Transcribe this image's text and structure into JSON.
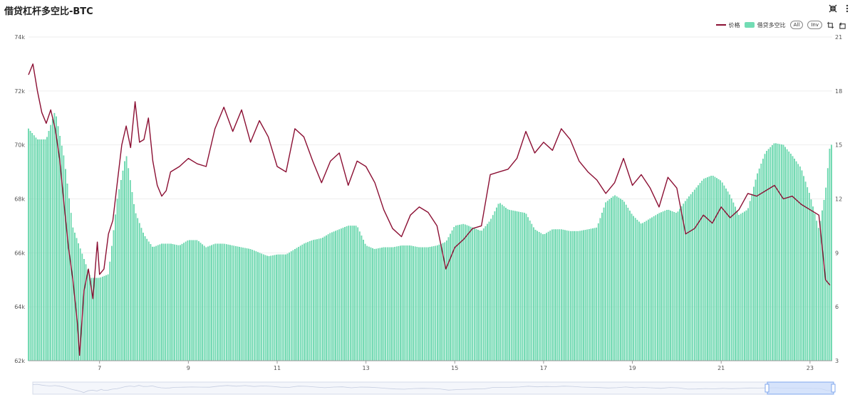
{
  "title": "借贷杠杆多空比-BTC",
  "toolbar": {
    "icons": [
      "collapse-icon",
      "more-icon"
    ]
  },
  "legend": {
    "price_label": "价格",
    "ratio_label": "借贷多空比",
    "all_label": "All",
    "inv_label": "Inv",
    "icons": [
      "zoom-select-icon",
      "zoom-reset-icon"
    ]
  },
  "colors": {
    "price": "#8b0f33",
    "ratio": "#72dcb4",
    "ratio_border": "#45c896",
    "grid": "#eeeeee"
  },
  "chart_data": {
    "type": "bar+line",
    "title": "借贷杠杆多空比-BTC",
    "x_tick_labels": [
      "7",
      "9",
      "11",
      "13",
      "15",
      "17",
      "19",
      "21",
      "23"
    ],
    "x_domain": [
      5.4,
      23.5
    ],
    "y_left": {
      "ylim": [
        62000,
        74000
      ],
      "ticks": [
        "62k",
        "64k",
        "66k",
        "68k",
        "70k",
        "72k",
        "74k"
      ]
    },
    "y_right": {
      "ylim": [
        3,
        21
      ],
      "ticks": [
        "3",
        "6",
        "9",
        "12",
        "15",
        "18",
        "21"
      ]
    },
    "series": [
      {
        "name": "价格",
        "kind": "line",
        "axis": "left",
        "points": [
          [
            5.4,
            72600
          ],
          [
            5.5,
            73000
          ],
          [
            5.6,
            72000
          ],
          [
            5.7,
            71200
          ],
          [
            5.8,
            70800
          ],
          [
            5.9,
            71300
          ],
          [
            6.0,
            70600
          ],
          [
            6.1,
            69500
          ],
          [
            6.2,
            67800
          ],
          [
            6.3,
            66200
          ],
          [
            6.4,
            65000
          ],
          [
            6.5,
            63400
          ],
          [
            6.55,
            62200
          ],
          [
            6.65,
            64600
          ],
          [
            6.75,
            65400
          ],
          [
            6.85,
            64300
          ],
          [
            6.95,
            66400
          ],
          [
            7.0,
            65200
          ],
          [
            7.1,
            65400
          ],
          [
            7.2,
            66700
          ],
          [
            7.3,
            67200
          ],
          [
            7.4,
            68600
          ],
          [
            7.5,
            70000
          ],
          [
            7.6,
            70700
          ],
          [
            7.7,
            69900
          ],
          [
            7.8,
            71600
          ],
          [
            7.9,
            70100
          ],
          [
            8.0,
            70200
          ],
          [
            8.1,
            71000
          ],
          [
            8.2,
            69400
          ],
          [
            8.3,
            68500
          ],
          [
            8.4,
            68100
          ],
          [
            8.5,
            68300
          ],
          [
            8.6,
            69000
          ],
          [
            8.8,
            69200
          ],
          [
            9.0,
            69500
          ],
          [
            9.2,
            69300
          ],
          [
            9.4,
            69200
          ],
          [
            9.6,
            70600
          ],
          [
            9.8,
            71400
          ],
          [
            10.0,
            70500
          ],
          [
            10.2,
            71300
          ],
          [
            10.4,
            70100
          ],
          [
            10.6,
            70900
          ],
          [
            10.8,
            70300
          ],
          [
            11.0,
            69200
          ],
          [
            11.2,
            69000
          ],
          [
            11.4,
            70600
          ],
          [
            11.6,
            70300
          ],
          [
            11.8,
            69400
          ],
          [
            12.0,
            68600
          ],
          [
            12.2,
            69400
          ],
          [
            12.4,
            69700
          ],
          [
            12.6,
            68500
          ],
          [
            12.8,
            69400
          ],
          [
            13.0,
            69200
          ],
          [
            13.2,
            68600
          ],
          [
            13.4,
            67600
          ],
          [
            13.6,
            66900
          ],
          [
            13.8,
            66600
          ],
          [
            14.0,
            67400
          ],
          [
            14.2,
            67700
          ],
          [
            14.4,
            67500
          ],
          [
            14.6,
            67000
          ],
          [
            14.8,
            65400
          ],
          [
            15.0,
            66200
          ],
          [
            15.2,
            66500
          ],
          [
            15.4,
            66900
          ],
          [
            15.6,
            67000
          ],
          [
            15.8,
            68900
          ],
          [
            16.0,
            69000
          ],
          [
            16.2,
            69100
          ],
          [
            16.4,
            69500
          ],
          [
            16.6,
            70500
          ],
          [
            16.8,
            69700
          ],
          [
            17.0,
            70100
          ],
          [
            17.2,
            69800
          ],
          [
            17.4,
            70600
          ],
          [
            17.6,
            70200
          ],
          [
            17.8,
            69400
          ],
          [
            18.0,
            69000
          ],
          [
            18.2,
            68700
          ],
          [
            18.4,
            68200
          ],
          [
            18.6,
            68600
          ],
          [
            18.8,
            69500
          ],
          [
            19.0,
            68500
          ],
          [
            19.2,
            68900
          ],
          [
            19.4,
            68400
          ],
          [
            19.6,
            67700
          ],
          [
            19.8,
            68800
          ],
          [
            20.0,
            68400
          ],
          [
            20.2,
            66700
          ],
          [
            20.4,
            66900
          ],
          [
            20.6,
            67400
          ],
          [
            20.8,
            67100
          ],
          [
            21.0,
            67700
          ],
          [
            21.2,
            67300
          ],
          [
            21.4,
            67600
          ],
          [
            21.6,
            68200
          ],
          [
            21.8,
            68100
          ],
          [
            22.0,
            68300
          ],
          [
            22.2,
            68500
          ],
          [
            22.4,
            68000
          ],
          [
            22.6,
            68100
          ],
          [
            22.8,
            67800
          ],
          [
            23.0,
            67600
          ],
          [
            23.2,
            67400
          ],
          [
            23.35,
            65000
          ],
          [
            23.45,
            64800
          ]
        ]
      },
      {
        "name": "借贷多空比",
        "kind": "bar",
        "axis": "right",
        "points": [
          [
            5.4,
            15.9
          ],
          [
            5.6,
            15.3
          ],
          [
            5.8,
            15.3
          ],
          [
            6.0,
            16.9
          ],
          [
            6.2,
            14.3
          ],
          [
            6.4,
            10.4
          ],
          [
            6.6,
            9.0
          ],
          [
            6.8,
            7.6
          ],
          [
            7.0,
            7.6
          ],
          [
            7.2,
            7.8
          ],
          [
            7.4,
            12.0
          ],
          [
            7.6,
            14.5
          ],
          [
            7.8,
            11.3
          ],
          [
            8.0,
            10.0
          ],
          [
            8.2,
            9.3
          ],
          [
            8.4,
            9.5
          ],
          [
            8.6,
            9.5
          ],
          [
            8.8,
            9.4
          ],
          [
            9.0,
            9.7
          ],
          [
            9.2,
            9.7
          ],
          [
            9.4,
            9.3
          ],
          [
            9.6,
            9.5
          ],
          [
            9.8,
            9.5
          ],
          [
            10.0,
            9.4
          ],
          [
            10.2,
            9.3
          ],
          [
            10.4,
            9.2
          ],
          [
            10.6,
            9.0
          ],
          [
            10.8,
            8.8
          ],
          [
            11.0,
            8.9
          ],
          [
            11.2,
            8.9
          ],
          [
            11.4,
            9.2
          ],
          [
            11.6,
            9.5
          ],
          [
            11.8,
            9.7
          ],
          [
            12.0,
            9.8
          ],
          [
            12.2,
            10.1
          ],
          [
            12.4,
            10.3
          ],
          [
            12.6,
            10.5
          ],
          [
            12.8,
            10.5
          ],
          [
            13.0,
            9.4
          ],
          [
            13.2,
            9.2
          ],
          [
            13.4,
            9.3
          ],
          [
            13.6,
            9.3
          ],
          [
            13.8,
            9.4
          ],
          [
            14.0,
            9.4
          ],
          [
            14.2,
            9.3
          ],
          [
            14.4,
            9.3
          ],
          [
            14.6,
            9.4
          ],
          [
            14.8,
            9.6
          ],
          [
            15.0,
            10.5
          ],
          [
            15.2,
            10.6
          ],
          [
            15.4,
            10.4
          ],
          [
            15.6,
            10.2
          ],
          [
            15.8,
            10.8
          ],
          [
            16.0,
            11.8
          ],
          [
            16.2,
            11.4
          ],
          [
            16.4,
            11.3
          ],
          [
            16.6,
            11.2
          ],
          [
            16.8,
            10.3
          ],
          [
            17.0,
            10.0
          ],
          [
            17.2,
            10.3
          ],
          [
            17.4,
            10.3
          ],
          [
            17.6,
            10.2
          ],
          [
            17.8,
            10.2
          ],
          [
            18.0,
            10.3
          ],
          [
            18.2,
            10.4
          ],
          [
            18.4,
            11.8
          ],
          [
            18.6,
            12.2
          ],
          [
            18.8,
            11.9
          ],
          [
            19.0,
            11.1
          ],
          [
            19.2,
            10.6
          ],
          [
            19.4,
            10.9
          ],
          [
            19.6,
            11.2
          ],
          [
            19.8,
            11.4
          ],
          [
            20.0,
            11.2
          ],
          [
            20.2,
            11.9
          ],
          [
            20.4,
            12.5
          ],
          [
            20.6,
            13.1
          ],
          [
            20.8,
            13.3
          ],
          [
            21.0,
            13.0
          ],
          [
            21.2,
            12.2
          ],
          [
            21.4,
            11.1
          ],
          [
            21.6,
            11.4
          ],
          [
            21.8,
            13.3
          ],
          [
            22.0,
            14.6
          ],
          [
            22.2,
            15.1
          ],
          [
            22.4,
            15.0
          ],
          [
            22.6,
            14.4
          ],
          [
            22.8,
            13.7
          ],
          [
            23.0,
            12.2
          ],
          [
            23.2,
            10.3
          ],
          [
            23.35,
            12.4
          ],
          [
            23.45,
            15.0
          ]
        ]
      }
    ]
  }
}
